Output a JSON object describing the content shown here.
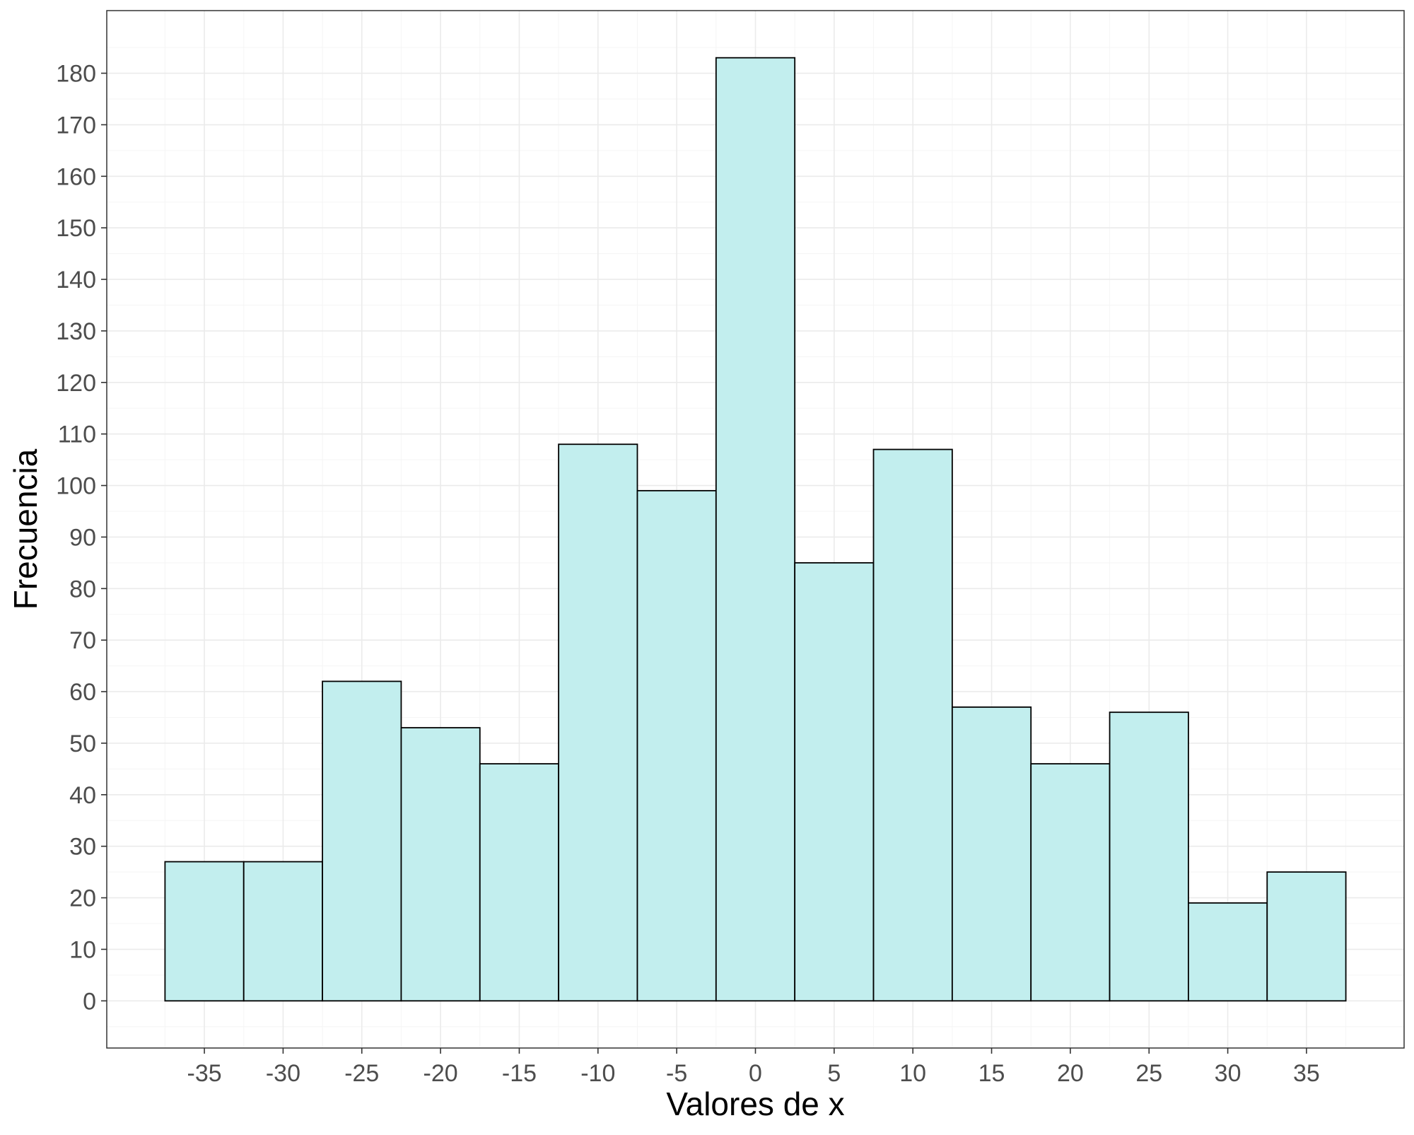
{
  "chart_data": {
    "type": "bar",
    "subtype": "histogram",
    "title": "",
    "xlabel": "Valores de x",
    "ylabel": "Frecuencia",
    "bin_width": 5,
    "bin_centers": [
      -35,
      -30,
      -25,
      -20,
      -15,
      -10,
      -5,
      0,
      5,
      10,
      15,
      20,
      25,
      30,
      35
    ],
    "values": [
      27,
      27,
      62,
      53,
      46,
      108,
      99,
      183,
      85,
      107,
      57,
      46,
      56,
      19,
      25
    ],
    "xlim": [
      -41.2,
      41.2
    ],
    "ylim": [
      -9.15,
      192.15
    ],
    "x_ticks": [
      -35,
      -30,
      -25,
      -20,
      -15,
      -10,
      -5,
      0,
      5,
      10,
      15,
      20,
      25,
      30,
      35
    ],
    "y_ticks": [
      0,
      10,
      20,
      30,
      40,
      50,
      60,
      70,
      80,
      90,
      100,
      110,
      120,
      130,
      140,
      150,
      160,
      170,
      180
    ],
    "grid": true,
    "theme": "bw",
    "colors": {
      "bar_fill": "#c2eeee",
      "bar_stroke": "#000000",
      "grid_major": "#ebebeb",
      "grid_minor": "#f5f5f5",
      "panel_border": "#333333"
    }
  }
}
